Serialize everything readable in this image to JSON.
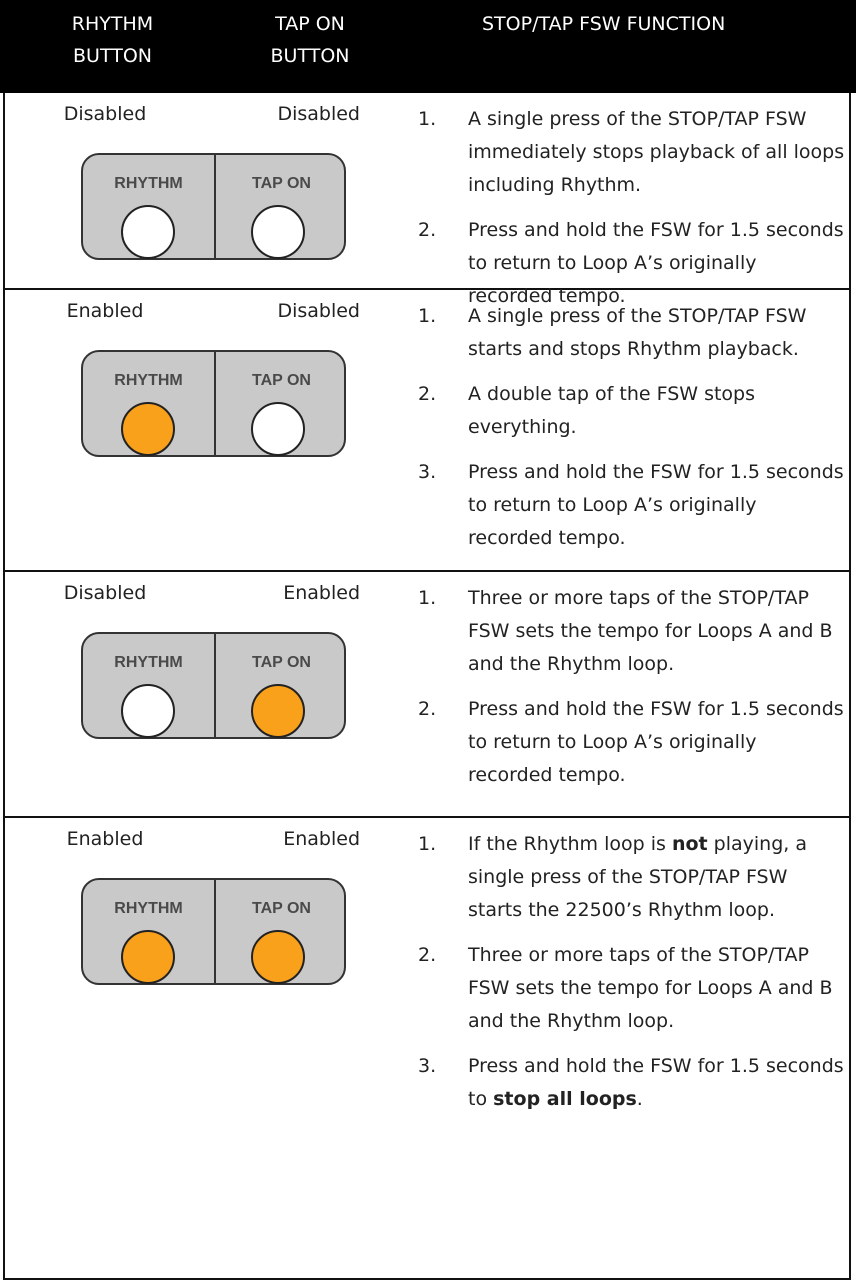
{
  "header": {
    "columns": [
      "RHYTHM BUTTON",
      "TAP ON BUTTON",
      "STOP/TAP FSW FUNCTION"
    ]
  },
  "table": {
    "rows": [
      {
        "rhythm": "Disabled",
        "tap": "Disabled",
        "panel": {
          "left_label": "RHYTHM",
          "right_label": "TAP ON",
          "left_led": "#ffffff",
          "right_led": "#ffffff"
        },
        "items": [
          {
            "number": "1.",
            "text": [
              "A single press of the STOP/TAP FSW immediately stops playback of all loops including Rhythm."
            ]
          },
          {
            "number": "2.",
            "text": [
              "Press and hold the FSW for 1.5 seconds to return to Loop A’s originally recorded tempo."
            ]
          }
        ]
      },
      {
        "rhythm": "Enabled",
        "tap": "Disabled",
        "panel": {
          "left_label": "RHYTHM",
          "right_label": "TAP ON",
          "left_led": "#f9a11b",
          "right_led": "#ffffff"
        },
        "items": [
          {
            "number": "1.",
            "text": [
              "A single press of the STOP/TAP FSW starts and stops Rhythm playback."
            ]
          },
          {
            "number": "2.",
            "text": [
              "A double tap of the FSW stops everything."
            ]
          },
          {
            "number": "3.",
            "text": [
              "Press and hold the FSW for 1.5 seconds to return to Loop A’s originally recorded tempo."
            ]
          }
        ]
      },
      {
        "rhythm": "Disabled",
        "tap": "Enabled",
        "panel": {
          "left_label": "RHYTHM",
          "right_label": "TAP ON",
          "left_led": "#ffffff",
          "right_led": "#f9a11b"
        },
        "items": [
          {
            "number": "1.",
            "text": [
              "Three or more taps of the STOP/TAP FSW sets the tempo for Loops A and B and the Rhythm loop."
            ]
          },
          {
            "number": "2.",
            "text": [
              "Press and hold the FSW for 1.5 seconds to return to Loop A’s originally recorded tempo."
            ]
          }
        ]
      },
      {
        "rhythm": "Enabled",
        "tap": "Enabled",
        "panel": {
          "left_label": "RHYTHM",
          "right_label": "TAP ON",
          "left_led": "#f9a11b",
          "right_led": "#f9a11b"
        },
        "items": [
          {
            "number": "1.",
            "text": [
              "If the Rhythm loop is ",
              {
                "text": "not",
                "bold": true
              },
              " playing, a single press of the STOP/TAP FSW starts the 22500’s Rhythm loop."
            ]
          },
          {
            "number": "2.",
            "text": [
              "Three or more taps of the STOP/TAP FSW sets the tempo for Loops A and B and the Rhythm loop."
            ]
          },
          {
            "number": "3.",
            "text": [
              "Press and hold the FSW for 1.5 seconds to ",
              {
                "text": "stop all loops",
                "bold": true
              },
              "."
            ]
          }
        ]
      }
    ]
  }
}
